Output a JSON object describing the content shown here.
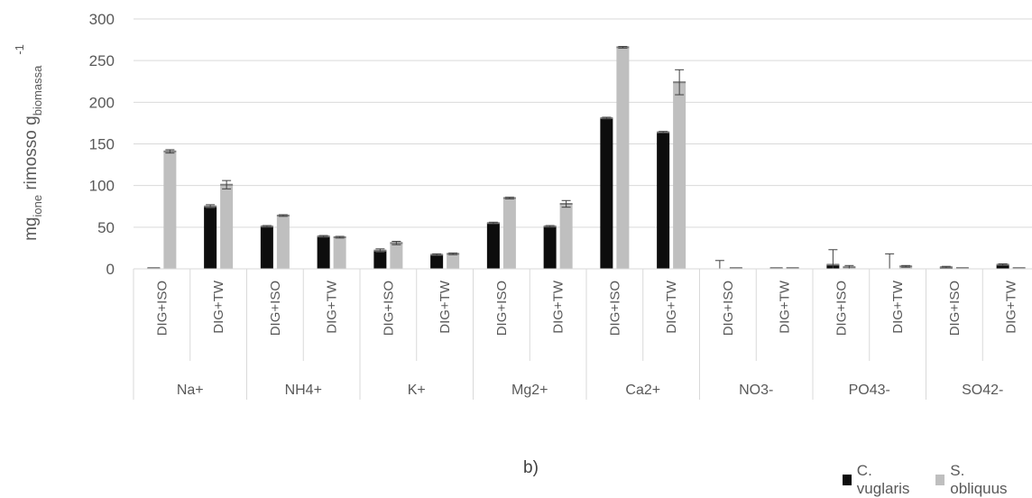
{
  "chart_data": {
    "type": "bar",
    "title": "",
    "ylabel": {
      "base1": "mg",
      "sub1": "ione",
      "base2": " rimosso g",
      "sub2": "biomassa",
      "sup": "-1"
    },
    "ylim": [
      0,
      300
    ],
    "yticks": [
      "0",
      "50",
      "100",
      "150",
      "200",
      "250",
      "300"
    ],
    "grid": true,
    "groups": [
      "Na+",
      "NH4+",
      "K+",
      "Mg2+",
      "Ca2+",
      "NO3-",
      "PO43-",
      "SO42-"
    ],
    "conditions": [
      "DIG+ISO",
      "DIG+TW"
    ],
    "series": [
      {
        "name": "C. vuglaris",
        "color": "#0d0d0d",
        "values": [
          1,
          75,
          51,
          39,
          22,
          17,
          55,
          51,
          181,
          164,
          0,
          1,
          5,
          0,
          2,
          5
        ],
        "errors": [
          0,
          2,
          1,
          1,
          2,
          1,
          1,
          1,
          1,
          1,
          10,
          0,
          18,
          18,
          1,
          1
        ]
      },
      {
        "name": "S. obliquus",
        "color": "#bfbfbf",
        "values": [
          141,
          101,
          64,
          38,
          31,
          18,
          85,
          78,
          266,
          224,
          1,
          1,
          2,
          3,
          1,
          1
        ],
        "errors": [
          2,
          5,
          1,
          1,
          2,
          1,
          1,
          4,
          1,
          15,
          0,
          0,
          2,
          1,
          0,
          0
        ]
      }
    ],
    "legend_position": "bottom-right"
  },
  "caption": "b)"
}
